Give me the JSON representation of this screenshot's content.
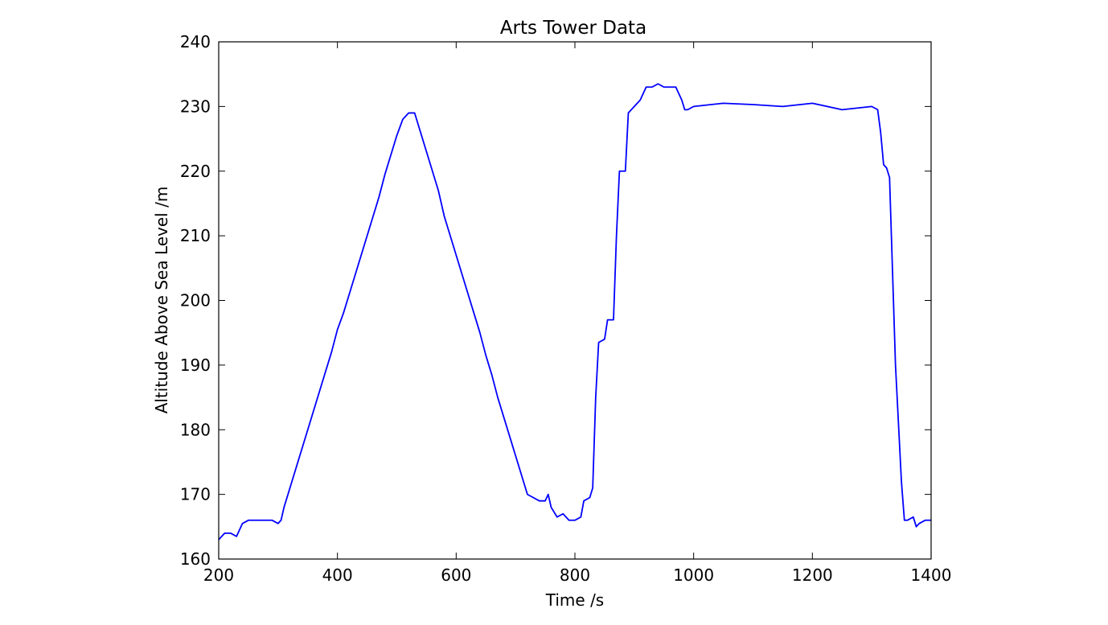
{
  "chart_data": {
    "type": "line",
    "title": "Arts Tower Data",
    "x_label": "Time /s",
    "y_label": "Altitude Above Sea Level /m",
    "x": [
      200,
      210,
      220,
      230,
      240,
      250,
      260,
      270,
      280,
      290,
      300,
      305,
      310,
      320,
      330,
      340,
      350,
      360,
      370,
      380,
      390,
      400,
      410,
      420,
      430,
      440,
      450,
      460,
      470,
      480,
      490,
      500,
      510,
      520,
      530,
      540,
      550,
      560,
      570,
      580,
      590,
      600,
      610,
      620,
      630,
      640,
      650,
      660,
      670,
      680,
      690,
      700,
      710,
      720,
      730,
      740,
      750,
      755,
      760,
      770,
      780,
      790,
      800,
      810,
      815,
      825,
      830,
      835,
      840,
      850,
      855,
      865,
      870,
      875,
      885,
      890,
      900,
      910,
      920,
      930,
      940,
      950,
      960,
      970,
      980,
      985,
      990,
      1000,
      1050,
      1100,
      1150,
      1200,
      1250,
      1300,
      1310,
      1315,
      1320,
      1325,
      1330,
      1340,
      1350,
      1355,
      1360,
      1370,
      1375,
      1380,
      1390,
      1400
    ],
    "series": [
      {
        "name": "Altitude",
        "color": "#0000ff",
        "values": [
          163,
          164,
          164,
          163.5,
          165.5,
          166,
          166,
          166,
          166,
          166,
          165.5,
          166,
          168,
          171,
          174,
          177,
          180,
          183,
          186,
          189,
          192,
          195.5,
          198,
          201,
          204,
          207,
          210,
          213,
          216,
          219.5,
          222.5,
          225.5,
          228,
          229,
          229,
          226,
          223,
          220,
          217,
          213,
          210,
          207,
          204,
          201,
          198,
          195,
          191.5,
          188.5,
          185,
          182,
          179,
          176,
          173,
          170,
          169.5,
          169,
          169,
          170,
          168,
          166.5,
          167,
          166,
          166,
          166.5,
          169,
          169.5,
          171,
          185,
          193.5,
          194,
          197,
          197,
          210,
          220,
          220,
          229,
          230,
          231,
          233,
          233,
          233.5,
          233,
          233,
          233,
          231,
          229.5,
          229.5,
          230,
          230.5,
          230.3,
          230,
          230.5,
          229.5,
          230,
          229.5,
          226,
          221,
          220.5,
          219,
          190,
          172,
          166,
          166,
          166.5,
          165,
          165.5,
          166,
          166
        ]
      }
    ],
    "xlim": [
      200,
      1400
    ],
    "ylim": [
      160,
      240
    ],
    "xticks": [
      200,
      400,
      600,
      800,
      1000,
      1200,
      1400
    ],
    "yticks": [
      160,
      170,
      180,
      190,
      200,
      210,
      220,
      230,
      240
    ]
  }
}
